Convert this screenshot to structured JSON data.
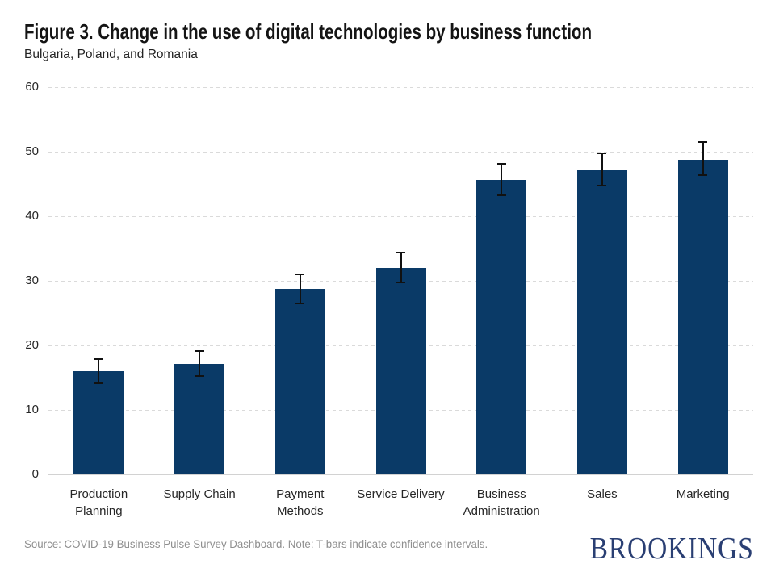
{
  "header": {
    "title": "Figure 3. Change in the use of digital technologies by business function",
    "subtitle": "Bulgaria, Poland, and Romania"
  },
  "footer": {
    "source_note": "Source: COVID-19 Business Pulse Survey Dashboard. Note: T-bars indicate confidence intervals.",
    "logo_text": "BROOKINGS"
  },
  "colors": {
    "bar": "#0a3a67",
    "error_bar": "#111111",
    "gridline": "#dadada",
    "axis_line": "#d2d2d2",
    "title_text": "#141414",
    "tick_text": "#262626",
    "source_text": "#8f8f8f",
    "logo_navy": "#2a3f73"
  },
  "chart_data": {
    "type": "bar",
    "title": "Figure 3. Change in the use of digital technologies by business function",
    "subtitle": "Bulgaria, Poland, and Romania",
    "categories": [
      "Production Planning",
      "Supply Chain",
      "Payment Methods",
      "Service Delivery",
      "Business Administration",
      "Sales",
      "Marketing"
    ],
    "values": [
      16.0,
      17.1,
      28.7,
      32.0,
      45.6,
      47.1,
      48.7
    ],
    "error_bars": {
      "low": [
        14.1,
        15.3,
        26.5,
        29.8,
        43.3,
        44.8,
        46.4
      ],
      "high": [
        17.9,
        19.1,
        31.0,
        34.4,
        48.1,
        49.8,
        51.5
      ]
    },
    "xlabel": "",
    "ylabel": "",
    "ylim": [
      0,
      60
    ],
    "yticks": [
      0,
      10,
      20,
      30,
      40,
      50,
      60
    ],
    "grid": "horizontal-dashed",
    "legend": "none",
    "layout_hints": {
      "category_lines": [
        [
          "Production",
          "Planning"
        ],
        [
          "Supply Chain"
        ],
        [
          "Payment",
          "Methods"
        ],
        [
          "Service Delivery"
        ],
        [
          "Business",
          "Administration"
        ],
        [
          "Sales"
        ],
        [
          "Marketing"
        ]
      ]
    }
  }
}
